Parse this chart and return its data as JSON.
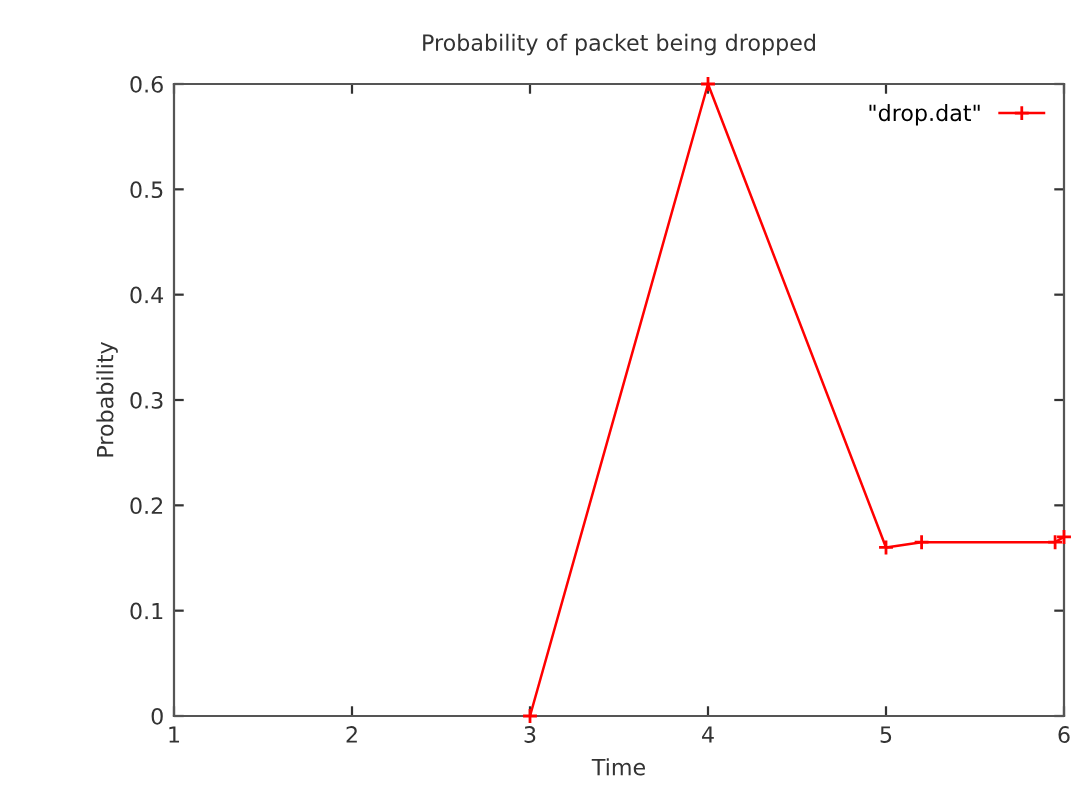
{
  "chart_data": {
    "type": "line",
    "title": "Probability of packet being dropped",
    "xlabel": "Time",
    "ylabel": "Probability",
    "series": [
      {
        "name": "\"drop.dat\"",
        "color": "#ff0000",
        "x": [
          3,
          4,
          5,
          5.2,
          5.95,
          6
        ],
        "values": [
          0,
          0.6,
          0.16,
          0.165,
          0.165,
          0.17
        ]
      }
    ],
    "xlim": [
      1,
      6
    ],
    "xticks": [
      1,
      2,
      3,
      4,
      5,
      6
    ],
    "ylim": [
      0,
      0.6
    ],
    "yticks": [
      0,
      0.1,
      0.2,
      0.3,
      0.4,
      0.5,
      0.6
    ],
    "grid": false,
    "legend": "top right",
    "marker": "cross",
    "line_style": "solid"
  }
}
